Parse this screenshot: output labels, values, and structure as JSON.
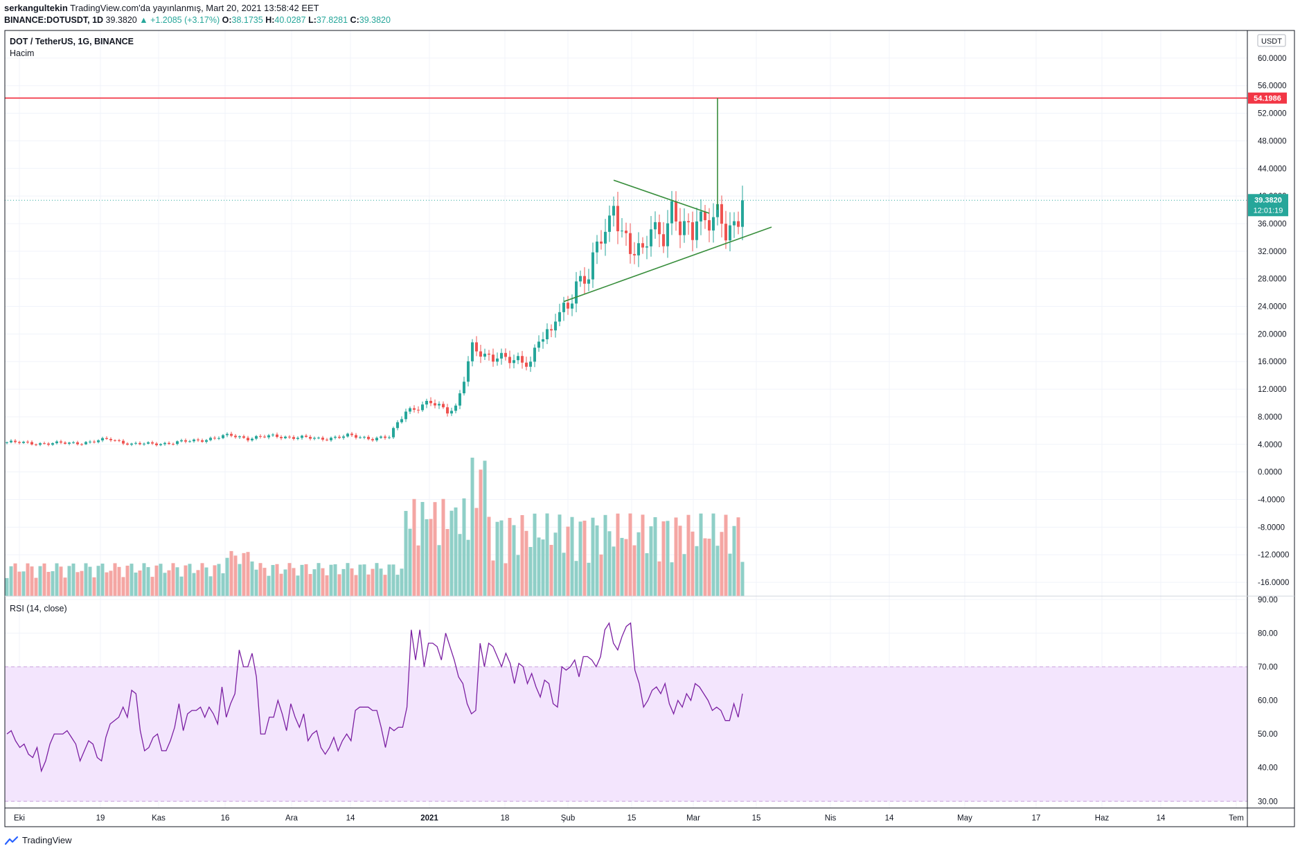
{
  "header": {
    "author": "serkangultekin",
    "published": "TradingView.com'da yayınlanmış, Mart 20, 2021 13:58:42 EET",
    "symbol_line": "BINANCE:DOTUSDT, 1D",
    "last": "39.3820",
    "change": "▲ +1.2085 (+3.17%)",
    "o_label": "O:",
    "o": "38.1735",
    "h_label": "H:",
    "h": "40.0287",
    "l_label": "L:",
    "l": "37.8281",
    "c_label": "C:",
    "c": "39.3820"
  },
  "pane": {
    "title": "DOT / TetherUS, 1G, BINANCE",
    "volume_label": "Hacim",
    "rsi_label": "RSI (14, close)",
    "currency": "USDT",
    "resistance_label": "54.1986",
    "price_label": "39.3820",
    "countdown": "12:01:19"
  },
  "footer": {
    "brand": "TradingView"
  },
  "colors": {
    "up": "#26a69a",
    "down": "#ef5350",
    "vol_up": "#8fcfc7",
    "vol_down": "#f4a6a3",
    "resistance": "#f23645",
    "pattern": "#388e3c",
    "rsi": "#7b1fa2",
    "rsi_band": "#f3e5fd"
  },
  "chart_data": {
    "type": "candlestick",
    "price_axis": {
      "ticks": [
        "60.0000",
        "56.0000",
        "52.0000",
        "48.0000",
        "44.0000",
        "40.0000",
        "36.0000",
        "32.0000",
        "28.0000",
        "24.0000",
        "20.0000",
        "16.0000",
        "12.0000",
        "8.0000",
        "4.0000",
        "0.0000",
        "-4.0000",
        "-8.0000",
        "-12.0000",
        "-16.0000"
      ],
      "ylim": [
        -18,
        64
      ]
    },
    "rsi_axis": {
      "ticks": [
        "90.00",
        "80.00",
        "70.00",
        "60.00",
        "50.00",
        "40.00",
        "30.00"
      ],
      "band": [
        30,
        70
      ],
      "ylim": [
        28,
        91
      ]
    },
    "x_ticks": [
      "Eki",
      "19",
      "Kas",
      "16",
      "Ara",
      "14",
      "2021",
      "18",
      "Şub",
      "15",
      "Mar",
      "15",
      "Nis",
      "14",
      "May",
      "17",
      "Haz",
      "14",
      "Tem"
    ],
    "resistance_level": 54.1986,
    "current_price": 39.382,
    "candles": {
      "days": 132,
      "anchors": [
        [
          0,
          4.3
        ],
        [
          10,
          4.1
        ],
        [
          20,
          4.3
        ],
        [
          25,
          4.8
        ],
        [
          30,
          4.0
        ],
        [
          40,
          4.2
        ],
        [
          50,
          4.9
        ],
        [
          54,
          5.3
        ],
        [
          58,
          4.9
        ],
        [
          65,
          5.2
        ],
        [
          75,
          4.8
        ],
        [
          82,
          5.2
        ],
        [
          88,
          4.9
        ],
        [
          92,
          5.0
        ],
        [
          96,
          9.0
        ],
        [
          102,
          9.9
        ],
        [
          106,
          9.0
        ],
        [
          108,
          9.5
        ],
        [
          112,
          17.6
        ],
        [
          115,
          16.8
        ],
        [
          118,
          17.2
        ],
        [
          122,
          15.7
        ],
        [
          126,
          16.0
        ],
        [
          128,
          20.0
        ],
        [
          131,
          19.8
        ]
      ]
    },
    "candles_late": [
      [
        132,
        22.0
      ],
      [
        135,
        24.0
      ],
      [
        137,
        28.0
      ],
      [
        140,
        28.5
      ],
      [
        143,
        33.5
      ],
      [
        145,
        36.0
      ],
      [
        146,
        39.5
      ],
      [
        148,
        35.5
      ],
      [
        150,
        32.0
      ],
      [
        153,
        31.0
      ],
      [
        155,
        36.0
      ],
      [
        158,
        35.0
      ],
      [
        160,
        37.5
      ],
      [
        162,
        34.5
      ],
      [
        165,
        35.0
      ],
      [
        166,
        38.0
      ],
      [
        168,
        37.0
      ],
      [
        171,
        36.5
      ],
      [
        173,
        34.0
      ],
      [
        175,
        35.5
      ],
      [
        177,
        39.4
      ]
    ],
    "volume": {
      "max": 92,
      "sample": [
        18,
        14,
        12,
        16,
        15,
        13,
        11,
        10,
        12,
        14,
        16,
        15,
        13,
        12,
        11,
        10,
        12,
        14,
        13,
        12,
        11,
        13,
        12,
        14,
        15,
        18,
        20,
        22,
        24,
        26
      ]
    },
    "rsi": [
      50,
      51,
      48,
      46,
      47,
      44,
      43,
      46,
      39,
      42,
      47,
      50,
      50,
      50,
      51,
      49,
      47,
      42,
      45,
      48,
      47,
      43,
      42,
      49,
      53,
      54,
      55,
      58,
      55,
      63,
      62,
      51,
      45,
      46,
      49,
      50,
      45,
      45,
      48,
      52,
      59,
      51,
      56,
      57,
      57,
      58,
      55,
      58,
      56,
      53,
      64,
      55,
      59,
      62,
      75,
      70,
      70,
      74,
      67,
      50,
      50,
      55,
      55,
      60,
      56,
      51,
      59,
      55,
      52,
      56,
      48,
      50,
      51,
      46,
      44,
      46,
      49,
      45,
      48,
      50,
      48,
      57,
      58,
      58,
      58,
      57,
      57,
      52,
      46,
      52,
      51,
      52,
      52,
      58,
      81,
      72,
      81,
      70,
      77,
      77,
      76,
      72,
      80,
      76,
      72,
      67,
      65,
      59,
      56,
      57,
      77,
      70,
      77,
      76,
      73,
      70,
      74,
      71,
      65,
      71,
      70,
      65,
      68,
      64,
      61,
      66,
      65,
      59,
      58,
      70,
      69,
      70,
      72,
      67,
      73,
      73,
      72,
      70,
      73,
      81,
      83,
      77,
      75,
      79,
      82,
      83,
      69,
      65,
      58,
      60,
      63,
      64,
      62,
      65,
      59,
      56,
      60,
      58,
      62,
      60,
      65,
      64,
      62,
      60,
      57,
      58,
      57,
      54,
      54,
      59,
      55,
      62
    ],
    "pattern": {
      "upper_line": [
        [
          146,
          42.3
        ],
        [
          169,
          37.5
        ]
      ],
      "lower_line": [
        [
          134,
          24.7
        ],
        [
          184,
          35.5
        ]
      ],
      "pole": [
        [
          171,
          38.0
        ],
        [
          171,
          54.2
        ]
      ]
    }
  }
}
